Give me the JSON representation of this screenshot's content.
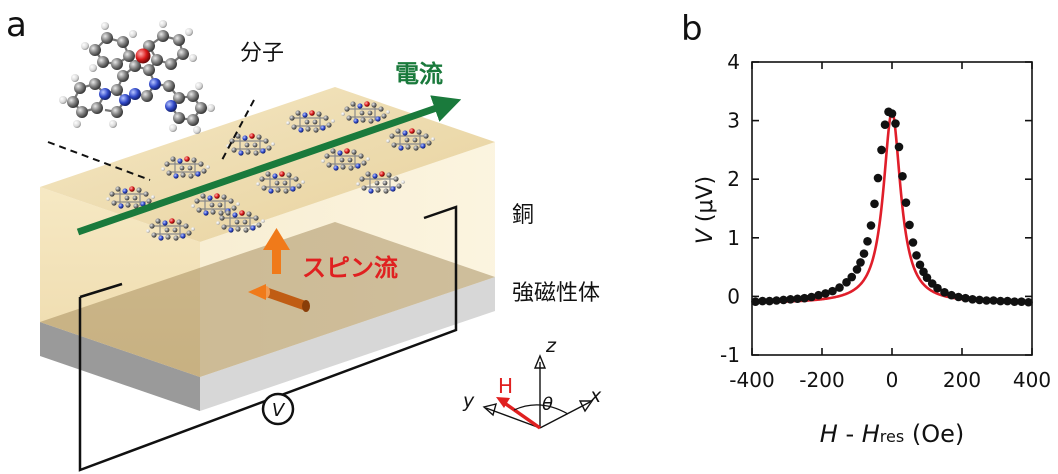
{
  "panel_a": {
    "panel_letter": "a",
    "labels": {
      "molecule": "分子",
      "current": "電流",
      "copper": "銅",
      "spin_current": "スピン流",
      "ferromagnet": "強磁性体",
      "voltmeter": "V"
    },
    "axes": {
      "z": "z",
      "x": "x",
      "y": "y",
      "field": "H",
      "angle": "θ"
    },
    "colors": {
      "current_arrow": "#1a7a3c",
      "spin_arrow": "#f07a1a",
      "spin_label": "#e02020",
      "field_arrow": "#e02020",
      "copper_top": "#efdcb0",
      "copper_front": "#f3e3b8",
      "ferromagnet": "#c8c8c8"
    }
  },
  "panel_b": {
    "panel_letter": "b",
    "ylabel_var": "V",
    "ylabel_unit": " (μV)",
    "xlabel_H": "H",
    "xlabel_sep": " - ",
    "xlabel_H2": "H",
    "xlabel_sub": "res",
    "xlabel_unit": " (Oe)",
    "colors": {
      "fit": "#e01e2a",
      "points": "#111111"
    }
  },
  "chart_data": {
    "type": "scatter",
    "title": "",
    "xlabel": "H - Hres (Oe)",
    "ylabel": "V (μV)",
    "xlim": [
      -400,
      400
    ],
    "ylim": [
      -1,
      4
    ],
    "xticks": [
      -400,
      -200,
      0,
      200,
      400
    ],
    "yticks": [
      -1,
      0,
      1,
      2,
      3,
      4
    ],
    "grid": false,
    "series": [
      {
        "kind": "points",
        "x": [
          -390,
          -370,
          -350,
          -330,
          -310,
          -290,
          -270,
          -250,
          -230,
          -210,
          -190,
          -170,
          -150,
          -130,
          -115,
          -100,
          -90,
          -80,
          -70,
          -60,
          -50,
          -40,
          -30,
          -20,
          -10,
          0,
          10,
          20,
          30,
          40,
          50,
          60,
          70,
          80,
          90,
          100,
          115,
          130,
          150,
          170,
          190,
          210,
          230,
          250,
          270,
          290,
          310,
          330,
          350,
          370,
          390
        ],
        "y": [
          -0.09,
          -0.08,
          -0.08,
          -0.07,
          -0.06,
          -0.05,
          -0.04,
          -0.03,
          -0.01,
          0.02,
          0.05,
          0.09,
          0.15,
          0.24,
          0.33,
          0.46,
          0.58,
          0.73,
          0.94,
          1.21,
          1.58,
          2.02,
          2.5,
          2.93,
          3.15,
          3.12,
          2.95,
          2.55,
          2.05,
          1.6,
          1.22,
          0.92,
          0.7,
          0.54,
          0.42,
          0.32,
          0.22,
          0.14,
          0.07,
          0.02,
          -0.01,
          -0.03,
          -0.05,
          -0.06,
          -0.07,
          -0.07,
          -0.08,
          -0.08,
          -0.09,
          -0.09,
          -0.1
        ]
      },
      {
        "kind": "fit-line",
        "model": "lorentzian",
        "amplitude": 3.15,
        "center": 0,
        "half_width": 30,
        "offset": -0.12
      }
    ]
  }
}
